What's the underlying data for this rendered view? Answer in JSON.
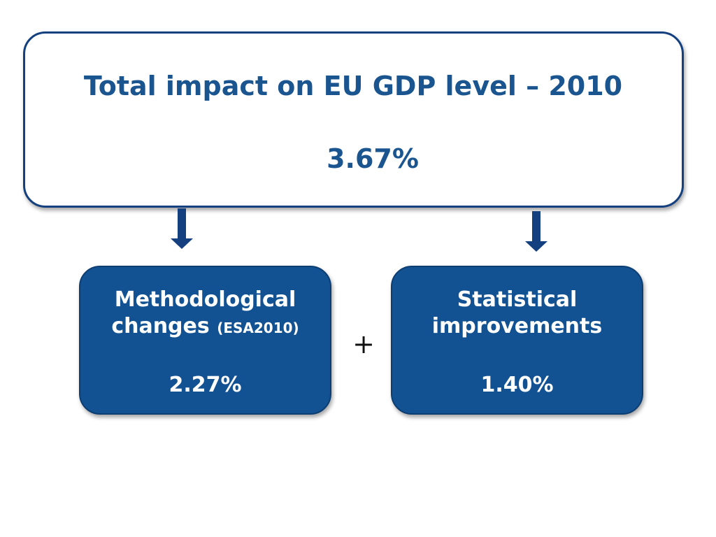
{
  "total": {
    "title": "Total impact on EU GDP level – 2010",
    "value": "3.67%"
  },
  "methodological": {
    "line1": "Methodological",
    "line2": "changes",
    "note": "(ESA2010)",
    "value": "2.27%"
  },
  "operator": "+",
  "statistical": {
    "line1": "Statistical",
    "line2": "improvements",
    "value": "1.40%"
  },
  "colors": {
    "title_text": "#1a5590",
    "box_border": "#14407f",
    "sub_box_fill": "#125293",
    "arrow": "#14407f"
  }
}
